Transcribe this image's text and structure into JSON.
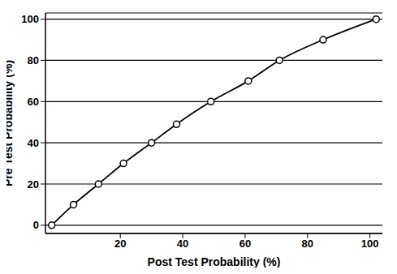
{
  "chart_data": {
    "type": "line",
    "x_label": "Post Test Probability (%)",
    "y_label": "Pre Test Probability (%)",
    "x": [
      -2,
      5,
      13,
      21,
      30,
      38,
      49,
      61,
      71,
      85,
      102
    ],
    "values": [
      0,
      10,
      20,
      30,
      40,
      49,
      60,
      70,
      80,
      90,
      100
    ],
    "color": "#000000",
    "marker": "circle",
    "xlim": [
      -4,
      104
    ],
    "xticks": [
      20,
      40,
      60,
      80,
      100
    ],
    "ylim": [
      -4,
      103
    ],
    "yticks": [
      0,
      20,
      40,
      60,
      80,
      100
    ],
    "grid": true
  }
}
